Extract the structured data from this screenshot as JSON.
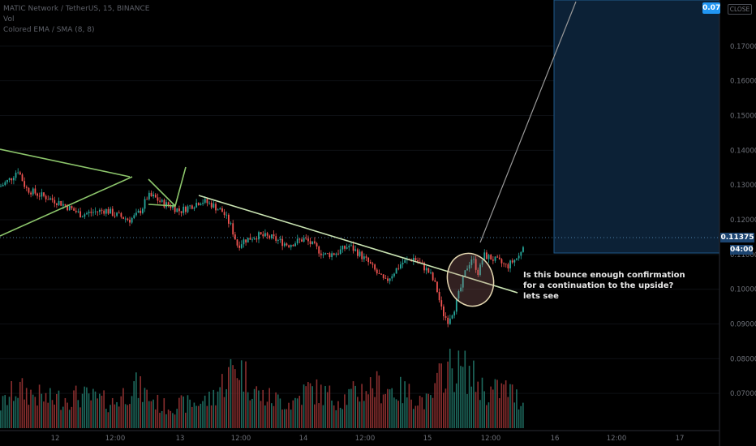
{
  "header": {
    "symbol_line": "MATIC Network / TetherUS, 15, BINANCE",
    "volume_line": "Vol",
    "indicator_line": "Colored EMA / SMA (8, 8)"
  },
  "price_tag": {
    "value": "0.11375",
    "countdown": "04:00"
  },
  "corner": {
    "tag": "0.07",
    "button": "CLOSE"
  },
  "annotation": "Is this bounce enough confirmation for a continuation to the upside? lets see",
  "colors": {
    "up": "#26a69a",
    "down": "#ef5350",
    "volume_up": "#1e6b5f",
    "volume_down": "#8b2f2f",
    "trendline": "#c9e3b2",
    "pattern_lines": "#8cc56b",
    "target_box": "#0c2136",
    "target_box_border": "#1f5a8c",
    "price_tag": "#1c4470",
    "corner_tag": "#2196f3"
  },
  "chart_data": {
    "type": "candlestick",
    "y_axis": {
      "min": 0.06,
      "max": 0.18,
      "ticks": [
        "0.17000",
        "0.16000",
        "0.15000",
        "0.14000",
        "0.13000",
        "0.12000",
        "0.11000",
        "0.10000",
        "0.09000",
        "0.08000",
        "0.07000"
      ]
    },
    "x_axis": {
      "ticks": [
        "12",
        "12:00",
        "13",
        "12:00",
        "14",
        "12:00",
        "15",
        "12:00",
        "16",
        "12:00",
        "17"
      ]
    },
    "price_path": [
      [
        0,
        0.1295
      ],
      [
        14,
        0.132
      ],
      [
        22,
        0.1345
      ],
      [
        32,
        0.129
      ],
      [
        45,
        0.1275
      ],
      [
        60,
        0.1262
      ],
      [
        75,
        0.1248
      ],
      [
        90,
        0.1228
      ],
      [
        100,
        0.1215
      ],
      [
        115,
        0.1222
      ],
      [
        130,
        0.1228
      ],
      [
        145,
        0.1212
      ],
      [
        160,
        0.12
      ],
      [
        168,
        0.1212
      ],
      [
        175,
        0.1232
      ],
      [
        182,
        0.1268
      ],
      [
        190,
        0.1265
      ],
      [
        200,
        0.1248
      ],
      [
        212,
        0.1238
      ],
      [
        222,
        0.1225
      ],
      [
        235,
        0.124
      ],
      [
        248,
        0.1255
      ],
      [
        260,
        0.1245
      ],
      [
        275,
        0.1222
      ],
      [
        285,
        0.118
      ],
      [
        293,
        0.1125
      ],
      [
        300,
        0.114
      ],
      [
        318,
        0.1155
      ],
      [
        335,
        0.1148
      ],
      [
        355,
        0.1128
      ],
      [
        375,
        0.1145
      ],
      [
        385,
        0.1128
      ],
      [
        400,
        0.1098
      ],
      [
        415,
        0.1105
      ],
      [
        430,
        0.1125
      ],
      [
        440,
        0.1108
      ],
      [
        455,
        0.1075
      ],
      [
        465,
        0.1045
      ],
      [
        475,
        0.102
      ],
      [
        485,
        0.1048
      ],
      [
        495,
        0.1075
      ],
      [
        510,
        0.109
      ],
      [
        520,
        0.107
      ],
      [
        530,
        0.1045
      ],
      [
        538,
        0.1005
      ],
      [
        545,
        0.0935
      ],
      [
        552,
        0.091
      ],
      [
        560,
        0.0945
      ],
      [
        567,
        0.0995
      ],
      [
        575,
        0.106
      ],
      [
        582,
        0.1092
      ],
      [
        590,
        0.1045
      ],
      [
        596,
        0.1098
      ],
      [
        605,
        0.109
      ],
      [
        618,
        0.1075
      ],
      [
        625,
        0.1065
      ],
      [
        633,
        0.1082
      ],
      [
        640,
        0.1095
      ],
      [
        645,
        0.1132
      ]
    ],
    "volume_path": [
      [
        0,
        0.3
      ],
      [
        20,
        0.55
      ],
      [
        60,
        0.4
      ],
      [
        100,
        0.45
      ],
      [
        140,
        0.35
      ],
      [
        165,
        0.6
      ],
      [
        200,
        0.3
      ],
      [
        240,
        0.35
      ],
      [
        260,
        0.4
      ],
      [
        292,
        0.9
      ],
      [
        320,
        0.45
      ],
      [
        360,
        0.35
      ],
      [
        380,
        0.55
      ],
      [
        420,
        0.4
      ],
      [
        460,
        0.6
      ],
      [
        500,
        0.5
      ],
      [
        530,
        0.35
      ],
      [
        548,
        0.85
      ],
      [
        575,
        0.8
      ],
      [
        600,
        0.5
      ],
      [
        625,
        0.55
      ],
      [
        645,
        0.35
      ]
    ],
    "annotations": [
      {
        "type": "trendline",
        "label": "descending resistance"
      },
      {
        "type": "triangle"
      },
      {
        "type": "ellipse",
        "label": "breakout zone"
      },
      {
        "type": "projection",
        "label": "target area"
      }
    ]
  }
}
